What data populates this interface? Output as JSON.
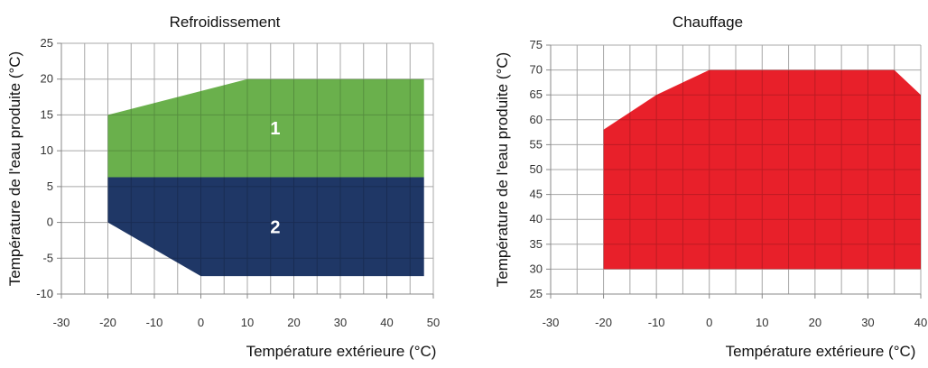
{
  "chart_data": [
    {
      "type": "area",
      "title": "Refroidissement",
      "xlabel": "Température extérieure (°C)",
      "ylabel": "Température de l'eau produite (°C)",
      "xlim": [
        -30,
        50
      ],
      "ylim": [
        -10,
        25
      ],
      "xticks": [
        "-30",
        "-20",
        "-10",
        "0",
        "10",
        "20",
        "30",
        "40",
        "50"
      ],
      "yticks": [
        "-10",
        "-5",
        "0",
        "5",
        "10",
        "15",
        "20",
        "25"
      ],
      "grid": true,
      "zones": [
        {
          "label": "1",
          "color": "#6ab04c",
          "polygon": [
            [
              -20,
              6.3
            ],
            [
              -20,
              15
            ],
            [
              10,
              20
            ],
            [
              48,
              20
            ],
            [
              48,
              6.3
            ]
          ]
        },
        {
          "label": "2",
          "color": "#1f3766",
          "polygon": [
            [
              -20,
              0
            ],
            [
              -20,
              6.3
            ],
            [
              48,
              6.3
            ],
            [
              48,
              -7.5
            ],
            [
              0,
              -7.5
            ]
          ]
        }
      ]
    },
    {
      "type": "area",
      "title": "Chauffage",
      "xlabel": "Température extérieure (°C)",
      "ylabel": "Température de l'eau produite (°C)",
      "xlim": [
        -30,
        40
      ],
      "ylim": [
        25,
        75
      ],
      "xticks": [
        "-30",
        "-20",
        "-10",
        "0",
        "10",
        "20",
        "30",
        "40"
      ],
      "yticks": [
        "25",
        "30",
        "35",
        "40",
        "45",
        "50",
        "55",
        "60",
        "65",
        "70",
        "75"
      ],
      "grid": true,
      "zones": [
        {
          "label": "",
          "color": "#e8202a",
          "polygon": [
            [
              -20,
              30
            ],
            [
              -20,
              58
            ],
            [
              -10,
              65
            ],
            [
              0,
              70
            ],
            [
              35,
              70
            ],
            [
              40,
              65
            ],
            [
              40,
              30
            ]
          ]
        }
      ]
    }
  ]
}
